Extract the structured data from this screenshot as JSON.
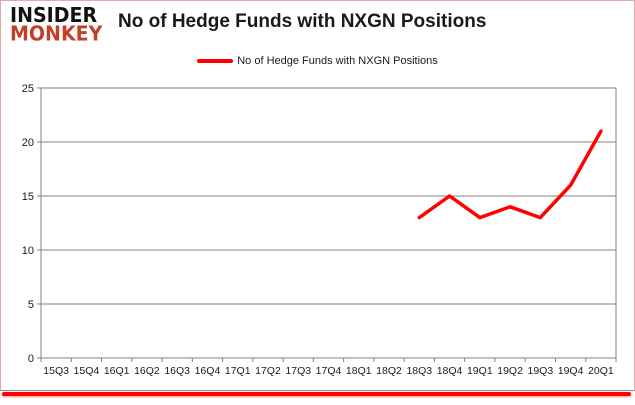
{
  "logo": {
    "line1": "INSIDER",
    "line2": "MONKEY"
  },
  "header": {
    "title": "No of Hedge Funds with NXGN Positions"
  },
  "legend": {
    "label": "No of Hedge Funds with NXGN Positions"
  },
  "colors": {
    "line": "#ff0000",
    "grid": "#808080",
    "axis": "#808080",
    "tick_text": "#1a1a1a",
    "logo_accent": "#c2402a",
    "frame_border": "#e2abab",
    "divider": "#ff0000"
  },
  "chart_data": {
    "type": "line",
    "title": "No of Hedge Funds with NXGN Positions",
    "categories": [
      "15Q3",
      "15Q4",
      "16Q1",
      "16Q2",
      "16Q3",
      "16Q4",
      "17Q1",
      "17Q2",
      "17Q3",
      "17Q4",
      "18Q1",
      "18Q2",
      "18Q3",
      "18Q4",
      "19Q1",
      "19Q2",
      "19Q3",
      "19Q4",
      "20Q1"
    ],
    "series": [
      {
        "name": "No of Hedge Funds with NXGN Positions",
        "color": "#ff0000",
        "values": [
          null,
          null,
          null,
          null,
          null,
          null,
          null,
          null,
          null,
          null,
          null,
          null,
          13,
          15,
          13,
          14,
          13,
          16,
          21
        ]
      }
    ],
    "xlabel": "",
    "ylabel": "",
    "ylim": [
      0,
      25
    ],
    "yticks": [
      0,
      5,
      10,
      15,
      20,
      25
    ],
    "grid": true,
    "legend_position": "top"
  }
}
